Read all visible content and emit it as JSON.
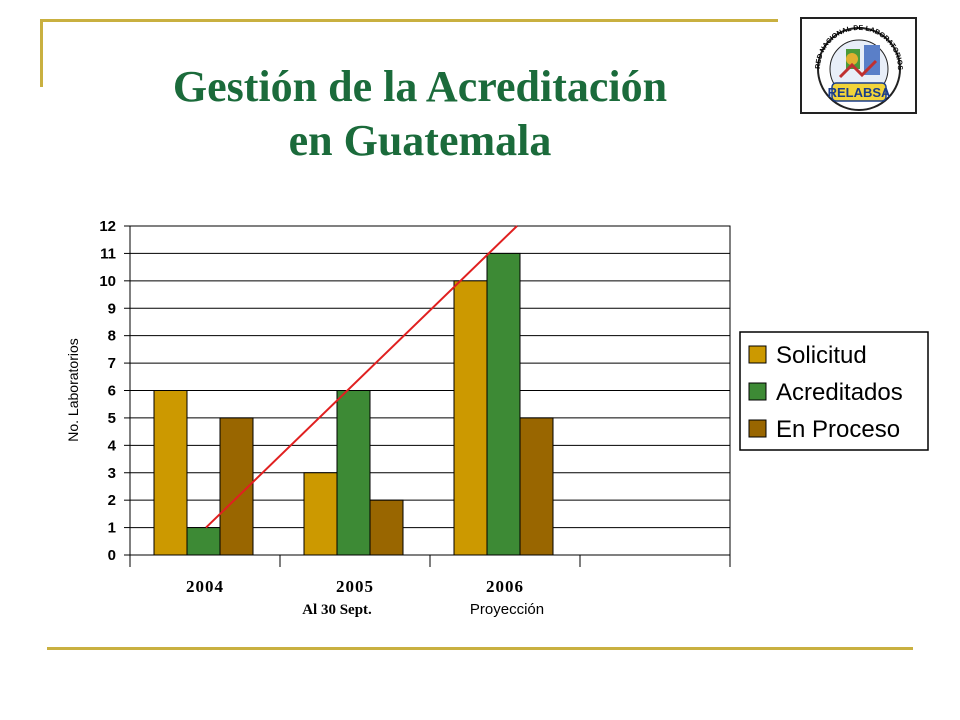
{
  "slide": {
    "title_line1": "Gestión de la Acreditación",
    "title_line2": "en Guatemala",
    "colors": {
      "title": "#1b6b3b",
      "frame": "#c9b040"
    }
  },
  "logo": {
    "ring_text": "RED NACIONAL DE LABORATORIOS DE SALUD Y AMBIENTE",
    "label": "RELABSA"
  },
  "chart_data": {
    "type": "bar",
    "categories": [
      "2004",
      "2005",
      "2006"
    ],
    "category_notes": [
      "",
      "Al  30 Sept.",
      "Proyección"
    ],
    "series": [
      {
        "name": "Solicitud",
        "values": [
          6,
          3,
          10
        ],
        "color": "#cc9900"
      },
      {
        "name": "Acreditados",
        "values": [
          1,
          6,
          11
        ],
        "color": "#3d8a35"
      },
      {
        "name": "En Proceso",
        "values": [
          5,
          2,
          5
        ],
        "color": "#996600"
      }
    ],
    "trend_line": {
      "color": "#e02020",
      "from": {
        "category": "2004",
        "y": 1
      },
      "to": {
        "category": "2006",
        "y": 12
      }
    },
    "ylabel": "No. Laboratorios",
    "xlabel": "",
    "ylim": [
      0,
      12
    ],
    "yticks": [
      "0",
      "1",
      "2",
      "3",
      "4",
      "5",
      "6",
      "7",
      "8",
      "9",
      "10",
      "11",
      "12"
    ],
    "grid": true,
    "legend": "right"
  }
}
